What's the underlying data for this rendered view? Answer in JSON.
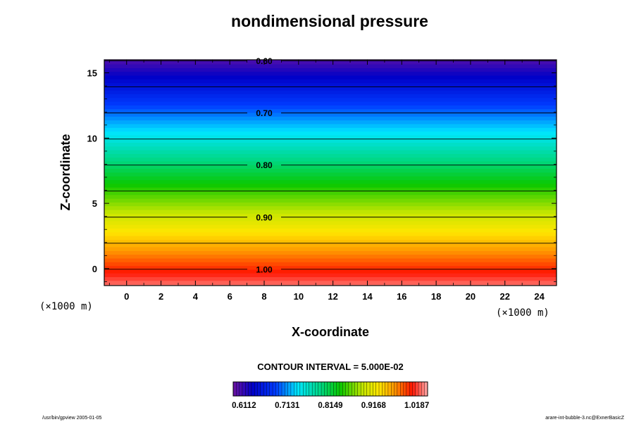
{
  "chart_data": {
    "type": "heatmap",
    "title": "nondimensional pressure",
    "xlabel": "X-coordinate",
    "ylabel": "Z-coordinate",
    "x_unit": "(×1000 m)",
    "z_unit": "(×1000 m)",
    "xlim": [
      -1.3,
      25.0
    ],
    "ylim": [
      -1.3,
      16.0
    ],
    "x_ticks": [
      0,
      2,
      4,
      6,
      8,
      10,
      12,
      14,
      16,
      18,
      20,
      22,
      24
    ],
    "y_ticks": [
      0,
      5,
      10,
      15
    ],
    "field": {
      "description": "horizontally uniform, decreasing with height",
      "value_at_bottom": 1.0313,
      "value_at_top": 0.5979
    },
    "contour_levels": [
      0.6,
      0.65,
      0.7,
      0.75,
      0.8,
      0.85,
      0.9,
      0.95,
      1.0
    ],
    "contour_labels": [
      {
        "value": 0.6,
        "text": "0.60"
      },
      {
        "value": 0.7,
        "text": "0.70"
      },
      {
        "value": 0.8,
        "text": "0.80"
      },
      {
        "value": 0.9,
        "text": "0.90"
      },
      {
        "value": 1.0,
        "text": "1.00"
      }
    ],
    "contour_label_x": 8,
    "contour_interval_text": "CONTOUR INTERVAL = 5.000E-02",
    "colorbar": {
      "min": 0.5857,
      "max": 1.0442,
      "n_colors": 64,
      "tick_values": [
        0.6112,
        0.7131,
        0.8149,
        0.9168,
        1.0187
      ],
      "tick_labels": [
        "0.6112",
        "0.7131",
        "0.8149",
        "0.9168",
        "1.0187"
      ]
    }
  },
  "footer": {
    "left": "/usr/bin/gpview 2005-01-05",
    "right": "arare-int-bubble-3.nc@ExnerBasicZ"
  }
}
